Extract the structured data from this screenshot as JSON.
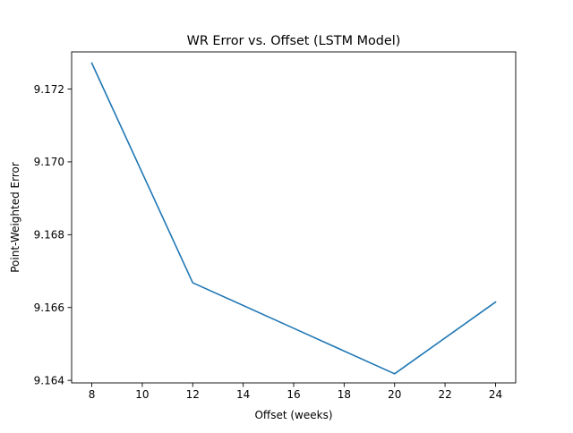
{
  "chart_data": {
    "type": "line",
    "title": "WR Error vs. Offset (LSTM Model)",
    "xlabel": "Offset (weeks)",
    "ylabel": "Point-Weighted Error",
    "series": [
      {
        "x": [
          8,
          12,
          16,
          20,
          24
        ],
        "y": [
          9.17271,
          9.16668,
          9.16543,
          9.16418,
          9.16615
        ],
        "color": "#1f77b4"
      }
    ],
    "xlim": [
      7.2,
      24.8
    ],
    "ylim": [
      9.16393,
      9.17302
    ],
    "xticks": [
      8,
      10,
      12,
      14,
      16,
      18,
      20,
      22,
      24
    ],
    "xtick_labels": [
      "8",
      "10",
      "12",
      "14",
      "16",
      "18",
      "20",
      "22",
      "24"
    ],
    "yticks": [
      9.164,
      9.166,
      9.168,
      9.17,
      9.172
    ],
    "ytick_labels": [
      "9.164",
      "9.166",
      "9.168",
      "9.170",
      "9.172"
    ],
    "grid": false,
    "legend": false
  }
}
